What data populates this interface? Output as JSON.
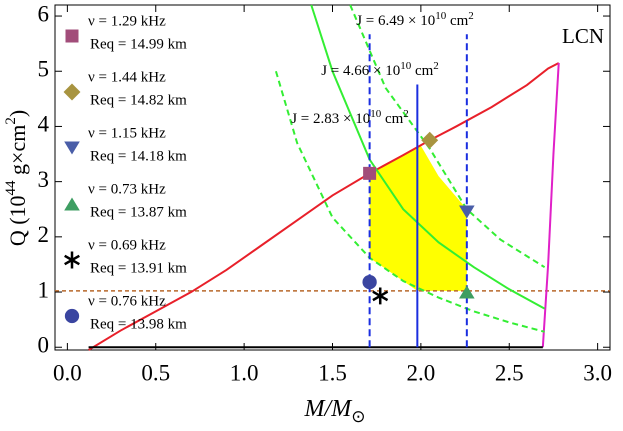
{
  "chart_data": {
    "type": "line",
    "xlabel": {
      "main": "M/M",
      "sub": "⊙"
    },
    "ylabel": {
      "main": "Q (10",
      "exp": "44",
      "unit": " g×cm",
      "unit_exp": "2",
      "close": ")"
    },
    "annotation": "LCN",
    "xlim": [
      -0.07,
      3.07
    ],
    "ylim": [
      -0.05,
      6.2
    ],
    "xticks": [
      {
        "value": 0,
        "label": "0.0"
      },
      0.5,
      {
        "value": 1,
        "label": "1.0"
      },
      1.5,
      {
        "value": 2,
        "label": "2.0"
      },
      2.5,
      {
        "value": 3,
        "label": "3.0"
      }
    ],
    "yticks": [
      0,
      1,
      2,
      3,
      4,
      5,
      6
    ],
    "curves": [
      {
        "color": "#e8202a",
        "dash": false,
        "x": [
          0.12,
          0.3,
          0.5,
          0.7,
          0.9,
          1.1,
          1.3,
          1.5,
          1.71,
          1.9,
          2.05,
          2.2,
          2.4,
          2.6,
          2.72,
          2.78
        ],
        "y": [
          -0.05,
          0.3,
          0.65,
          1.0,
          1.4,
          1.85,
          2.3,
          2.75,
          3.15,
          3.48,
          3.75,
          4.0,
          4.35,
          4.75,
          5.05,
          5.15
        ]
      },
      {
        "color": "#e020c8",
        "dash": false,
        "x": [
          2.78,
          2.75,
          2.72,
          2.69
        ],
        "y": [
          5.15,
          3.5,
          1.5,
          0.0
        ]
      },
      {
        "color": "#000000",
        "dash": false,
        "x": [
          0.12,
          2.69
        ],
        "y": [
          0,
          0
        ]
      },
      {
        "color": "#33ee33",
        "dash": true,
        "x": [
          1.18,
          1.3,
          1.5,
          1.71,
          1.9,
          2.1,
          2.3,
          2.5,
          2.7
        ],
        "y": [
          5.0,
          3.7,
          2.35,
          1.62,
          1.2,
          0.9,
          0.65,
          0.45,
          0.28
        ]
      },
      {
        "color": "#33ee33",
        "dash": false,
        "x": [
          1.38,
          1.5,
          1.71,
          1.9,
          2.1,
          2.3,
          2.5,
          2.7
        ],
        "y": [
          6.2,
          5.0,
          3.4,
          2.5,
          1.9,
          1.45,
          1.05,
          0.7
        ]
      },
      {
        "color": "#33ee33",
        "dash": true,
        "x": [
          1.6,
          1.8,
          2.05,
          2.26,
          2.45,
          2.7
        ],
        "y": [
          6.2,
          4.7,
          3.6,
          2.5,
          1.95,
          1.45
        ]
      }
    ],
    "region": {
      "color": "#ffff00",
      "x": [
        1.71,
        1.9,
        2.0,
        2.1,
        2.26,
        2.26,
        1.98,
        1.9,
        1.71
      ],
      "y": [
        3.15,
        3.48,
        3.65,
        3.1,
        2.5,
        1.02,
        1.02,
        1.2,
        1.62
      ]
    },
    "hline": {
      "y": 1.02,
      "color": "#b8682a"
    },
    "vlines": [
      {
        "x": 1.71,
        "y": [
          0,
          5.67
        ],
        "dash": true,
        "color": "#1a2ee0",
        "label": {
          "base": "J = 2.83 × 10",
          "exp": "10",
          "unit": " cm",
          "unit_exp": "2"
        }
      },
      {
        "x": 1.98,
        "y": [
          0,
          4.76
        ],
        "dash": false,
        "color": "#1a2ee0",
        "label": {
          "base": "J = 4.66 × 10",
          "exp": "10",
          "unit": " cm",
          "unit_exp": "2"
        }
      },
      {
        "x": 2.26,
        "y": [
          0,
          5.67
        ],
        "dash": true,
        "color": "#1a2ee0",
        "label": {
          "base": "J = 6.49 × 10",
          "exp": "10",
          "unit": " cm",
          "unit_exp": "2"
        }
      }
    ],
    "points": [
      {
        "marker": "square",
        "color": "#a24d7a",
        "x": 1.71,
        "y": 3.15,
        "nu": "ν = 1.29 kHz",
        "req": "Req = 14.99 km"
      },
      {
        "marker": "diamond",
        "color": "#a89440",
        "x": 2.05,
        "y": 3.75,
        "nu": "ν = 1.44 kHz",
        "req": "Req = 14.82 km"
      },
      {
        "marker": "triangle-down",
        "color": "#4a5ea8",
        "x": 2.26,
        "y": 2.45,
        "nu": "ν = 1.15 kHz",
        "req": "Req = 14.18 km"
      },
      {
        "marker": "triangle-up",
        "color": "#3e9e62",
        "x": 2.26,
        "y": 1.0,
        "nu": "ν = 0.73 kHz",
        "req": "Req = 13.87 km"
      },
      {
        "marker": "asterisk",
        "color": "#000000",
        "x": 1.77,
        "y": 0.93,
        "nu": "ν = 0.69 kHz",
        "req": "Req = 13.91 km"
      },
      {
        "marker": "circle",
        "color": "#3a45a0",
        "x": 1.71,
        "y": 1.18,
        "nu": "ν = 0.76 kHz",
        "req": "Req = 13.98 km"
      }
    ]
  }
}
